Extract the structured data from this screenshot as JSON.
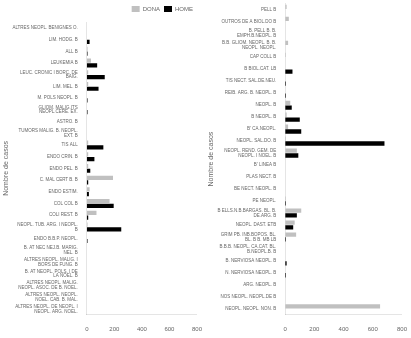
{
  "chart_data": [
    {
      "type": "bar",
      "orientation": "horizontal",
      "categories": [
        "ALTRES NEOPL. BENIGNES O.",
        "LIM. HODG. B",
        "ALL B",
        "LEUKEMIA B",
        "LEUC. CRONIC I BORC. DE BAIG.",
        "LIM. MEL. B",
        "M. POLS NEOPL. B",
        "GLIOM. MALIG.ITS NEOPL.CERE. EX.",
        "ASTRO. B",
        "TUMORS MALIG. B. NEOPL. EXT. B",
        "TIS ALL",
        "ENDO CRIN. B",
        "ENDO PEL. B",
        "C. MAL CERT B. B",
        "ENDO ESTIM.",
        "COL COL B",
        "COLI REST. B",
        "NEOPL. TUB. ARG. I NEOPL. B",
        "ENDO B.B.P. NEOPL.",
        "B. AT NEC NEJ.B. MARIG. NEL. B",
        "ALTRES NEOPL. MALIG. I BORS DE FUNG. B",
        "B. AT NEOPL. POLS. I DE LA NOEL. B",
        "ALTRES NEOPL. MALIG. NEOPL. ASOC. DE B. NOEL.",
        "ALTRES NEOPL. NEOPL. NOEL. CAB. B. MAL.",
        "ALTRES NEOPL. DE NEOPL. I NEOPL. ARG. NOEL."
      ],
      "series": [
        {
          "name": "DONA",
          "color": "#c0c0c0",
          "values": [
            0,
            0,
            5,
            30,
            10,
            10,
            0,
            0,
            0,
            0,
            10,
            10,
            10,
            190,
            20,
            165,
            70,
            5,
            0,
            0,
            0,
            0,
            0,
            0,
            0
          ]
        },
        {
          "name": "HOME",
          "color": "#000000",
          "values": [
            0,
            20,
            5,
            75,
            130,
            85,
            5,
            5,
            0,
            0,
            120,
            55,
            25,
            10,
            15,
            195,
            10,
            250,
            5,
            0,
            0,
            0,
            0,
            0,
            0
          ]
        }
      ],
      "ylabel": "Nombre de casos",
      "xlim": [
        0,
        800
      ],
      "xticks": [
        0,
        200,
        400,
        600,
        800
      ],
      "grid": false,
      "legend": "upper right"
    },
    {
      "type": "bar",
      "orientation": "horizontal",
      "categories": [
        "PELL B",
        "OUTROS DE A BIOL.DO B",
        "B. PELL B. B. EMPH.B.NEOPL. B",
        "B.B. GLIOM. NEOPL. B. B. NEOPL. NEOPL.",
        "CAP COLL B",
        "B BIOL.CAT. LB",
        "TIS NECT. SAL.DE.NEU.",
        "REIB. ARG. B. NEOPL. B",
        "NEOPL. B",
        "B NEOPL. B",
        "B' CA.NEOPL.",
        "NEOPL. SAL.DO. B",
        "NEOPL. REND. GEM. DE NEOPL. I NOEL. B",
        "B' LINEA B",
        "PLAS NECT. B",
        "BE NECT. NEOPL. B",
        "PE NEOPL.",
        "B ELLS.N.B.BARGAS. BL. B. DE.ARG. B",
        "NEOPL. DAST. ETB",
        "GRIM PB. INB.BOPOS. BL. BL. B B. MB LB",
        "B.B.B. NEOPL. CA.CAT. BL. B.NEOPL.B. B",
        "B. NERVIOSA NEOPL. B",
        "N. NERVIOSA NEOPL. B",
        "ARG. NEOPL. B",
        "NOS NEOPL. NEOPL.DE B",
        "NEOPL. NEOPL. NON. B"
      ],
      "series": [
        {
          "name": "DONA",
          "color": "#c0c0c0",
          "values": [
            10,
            25,
            0,
            20,
            5,
            0,
            0,
            0,
            35,
            10,
            20,
            5,
            80,
            0,
            0,
            0,
            5,
            110,
            65,
            75,
            0,
            0,
            0,
            0,
            0,
            650
          ]
        },
        {
          "name": "HOME",
          "color": "#000000",
          "values": [
            0,
            0,
            0,
            0,
            0,
            50,
            5,
            5,
            45,
            100,
            110,
            680,
            90,
            0,
            0,
            0,
            5,
            80,
            55,
            5,
            0,
            10,
            5,
            0,
            0,
            0
          ]
        }
      ],
      "ylabel": "Nombre de casos",
      "xlim": [
        0,
        800
      ],
      "xticks": [
        0,
        200,
        400,
        600,
        800
      ],
      "grid": false
    }
  ]
}
